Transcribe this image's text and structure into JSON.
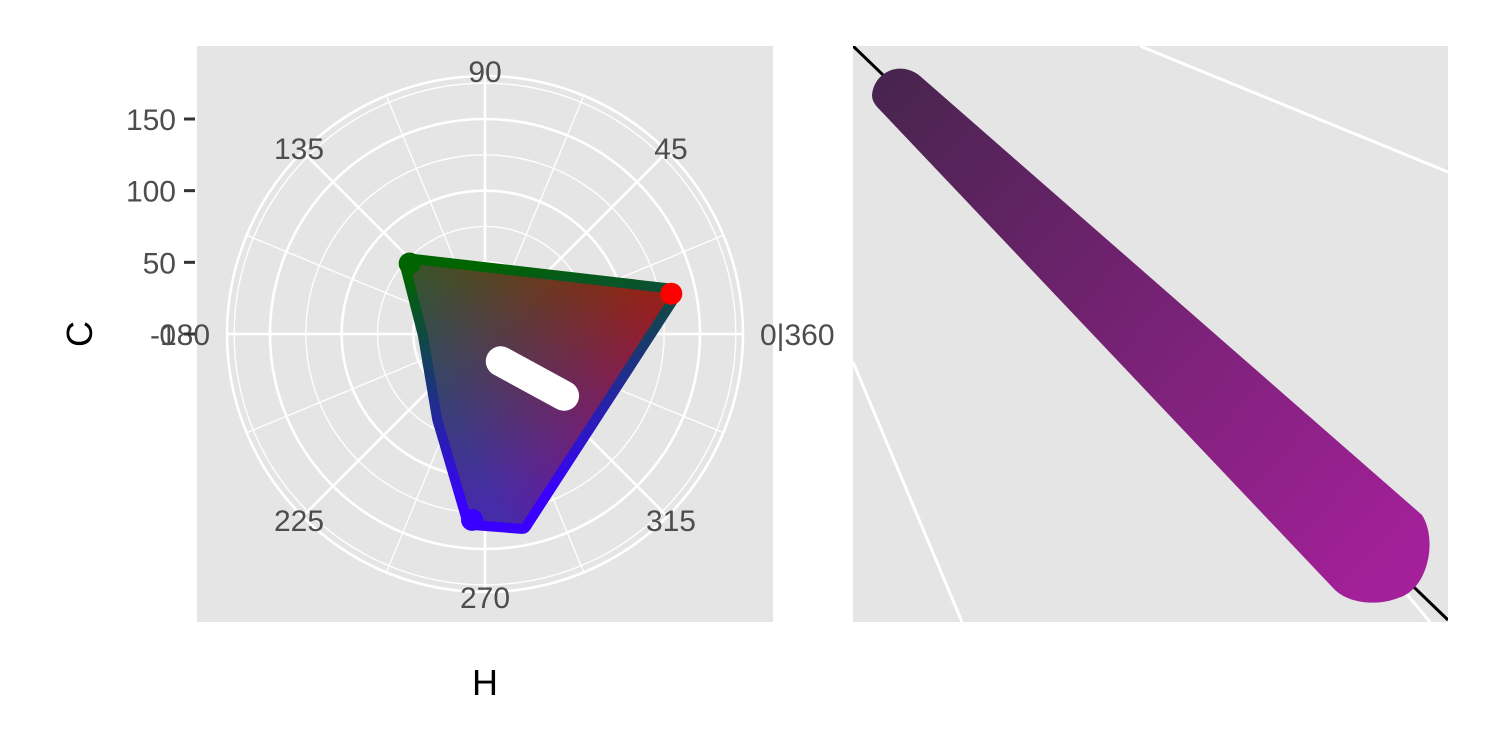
{
  "colors": {
    "panel_background": "#e5e5e5",
    "grid": "#ffffff",
    "axis_ink": "#333333",
    "guide_line": "#000000",
    "highlight": "#ffffff",
    "strip_dark": "#4a2450",
    "strip_light": "#a4209a"
  },
  "chart_data": [
    {
      "type": "scatter",
      "coordinate_system": "polar",
      "xlabel": "H",
      "ylabel": "C",
      "x_unit": "degrees",
      "x_ticks": [
        {
          "value": 0,
          "label": "0|360"
        },
        {
          "value": 45,
          "label": "45"
        },
        {
          "value": 90,
          "label": "90"
        },
        {
          "value": 135,
          "label": "135"
        },
        {
          "value": 180,
          "label": "-180"
        },
        {
          "value": 225,
          "label": "225"
        },
        {
          "value": 270,
          "label": "270"
        },
        {
          "value": 315,
          "label": "315"
        }
      ],
      "y_ticks": [
        {
          "value": 0,
          "label": "0"
        },
        {
          "value": 50,
          "label": "50"
        },
        {
          "value": 100,
          "label": "100"
        },
        {
          "value": 150,
          "label": "150"
        }
      ],
      "ylim": [
        0,
        180
      ],
      "grid": true,
      "series": [
        {
          "fill": "rgb gamut",
          "outline": [
            {
              "h": 12.2,
              "c": 133
            },
            {
              "h": 136.9,
              "c": 72
            },
            {
              "h": 180,
              "c": 40
            },
            {
              "h": 243,
              "c": 66
            },
            {
              "h": 266,
              "c": 130
            },
            {
              "h": 281,
              "c": 135
            }
          ],
          "vertex_colors": [
            {
              "h": 12.2,
              "c": 133,
              "color": "#ff0000"
            },
            {
              "h": 136.9,
              "c": 72,
              "color": "#006400"
            },
            {
              "h": 266,
              "c": 130,
              "color": "#3a00ff"
            }
          ]
        },
        {
          "color": "#ffffff",
          "segment": [
            {
              "h": 300,
              "c": 22
            },
            {
              "h": 322,
              "c": 70
            }
          ]
        }
      ]
    },
    {
      "type": "scatter",
      "coordinate_system": "polar (zoomed)",
      "grid": true,
      "series": [
        {
          "gradient": [
            "#4a2450",
            "#a4209a"
          ]
        }
      ]
    }
  ]
}
